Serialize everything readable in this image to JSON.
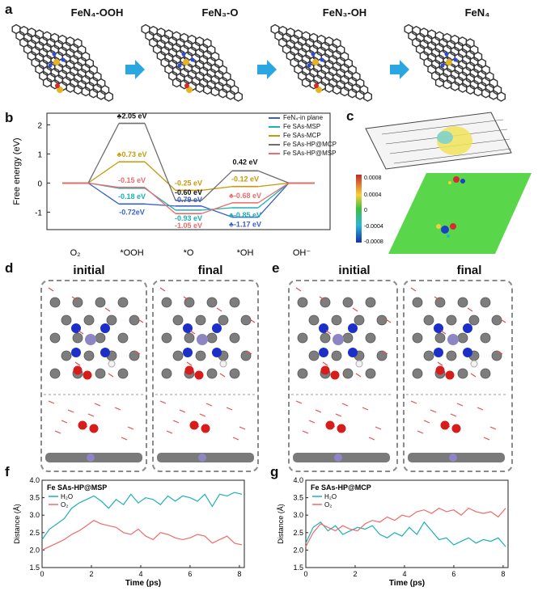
{
  "panel_labels": {
    "a": "a",
    "b": "b",
    "c": "c",
    "d": "d",
    "e": "e",
    "f": "f",
    "g": "g"
  },
  "panel_a": {
    "titles": [
      "FeN₄-OOH",
      "FeN₃-O",
      "FeN₃-OH",
      "FeN₄"
    ],
    "arrow_color": "#2aa6e0"
  },
  "panel_b": {
    "ylabel": "Free energy (eV)",
    "categories": [
      "O₂",
      "*OOH",
      "*O",
      "*OH",
      "OH⁻"
    ],
    "legend": [
      "FeN₄-in plane",
      "Fe SAs-MSP",
      "Fe SAs-MCP",
      "Fe SAs-HP@MCP",
      "Fe SAs-HP@MSP"
    ],
    "value_labels": [
      "♣2.05 eV",
      "♣0.73 eV",
      "-0.15 eV",
      "-0.18 eV",
      "-0.72eV",
      "-0.25 eV",
      "-0.60 eV",
      "-0.79 eV",
      "-0.93 eV",
      "-1.05 eV",
      "0.42 eV",
      "-0.12 eV",
      "♣-0.68 eV",
      "♣-0.85 eV",
      "♣-1.17 eV"
    ]
  },
  "panel_c": {
    "colorbar_ticks": [
      "0.0008",
      "0.0004",
      "0",
      "-0.0004",
      "-0.0008"
    ]
  },
  "panel_d": {
    "initial": "initial",
    "final": "final"
  },
  "panel_e": {
    "initial": "initial",
    "final": "final"
  },
  "panel_f": {
    "title": "Fe SAs-HP@MSP",
    "xlabel": "Time (ps)",
    "ylabel": "Distance (Å)",
    "legend": [
      "H₂O",
      "O₂"
    ]
  },
  "panel_g": {
    "title": "Fe SAs-HP@MCP",
    "xlabel": "Time (ps)",
    "ylabel": "Distance (Å)",
    "legend": [
      "H₂O",
      "O₂"
    ]
  },
  "chart_data": [
    {
      "type": "line",
      "categories": [
        "O₂",
        "*OOH",
        "*O",
        "*OH",
        "OH⁻"
      ],
      "ylabel": "Free energy (eV)",
      "ylim": [
        -1.6,
        2.4
      ],
      "yticks": [
        -1,
        0,
        1,
        2
      ],
      "legend_position": "top-right",
      "series": [
        {
          "name": "FeN₄-in plane",
          "color": "#3a5fc8",
          "values": [
            0,
            -0.72,
            -0.79,
            -1.17,
            0
          ]
        },
        {
          "name": "Fe SAs-MSP",
          "color": "#1bb0b5",
          "values": [
            0,
            -0.18,
            -0.93,
            -0.85,
            0
          ]
        },
        {
          "name": "Fe SAs-MCP",
          "color": "#c49a0a",
          "values": [
            0,
            0.73,
            -0.25,
            -0.12,
            0
          ]
        },
        {
          "name": "Fe SAs-HP@MCP",
          "color": "#6e6e6e",
          "values": [
            0,
            2.05,
            -0.6,
            0.42,
            0
          ]
        },
        {
          "name": "Fe SAs-HP@MSP",
          "color": "#f06a6a",
          "values": [
            0,
            -0.15,
            -1.05,
            -0.68,
            0
          ]
        }
      ]
    },
    {
      "type": "line",
      "title": "Fe SAs-HP@MSP",
      "xlabel": "Time (ps)",
      "ylabel": "Distance (Å)",
      "xlim": [
        0,
        8.2
      ],
      "ylim": [
        1.5,
        4.0
      ],
      "xticks": [
        0,
        2,
        4,
        6,
        8
      ],
      "yticks": [
        1.5,
        2.0,
        2.5,
        3.0,
        3.5,
        4.0
      ],
      "series": [
        {
          "name": "H₂O",
          "color": "#1bb0b5",
          "x": [
            0,
            0.3,
            0.6,
            0.9,
            1.2,
            1.5,
            1.8,
            2.1,
            2.4,
            2.7,
            3.0,
            3.3,
            3.6,
            3.9,
            4.2,
            4.5,
            4.8,
            5.1,
            5.4,
            5.7,
            6.0,
            6.3,
            6.6,
            6.9,
            7.2,
            7.5,
            7.8,
            8.1
          ],
          "y": [
            2.3,
            2.6,
            2.75,
            2.9,
            3.2,
            3.35,
            3.45,
            3.55,
            3.4,
            3.2,
            3.45,
            3.3,
            3.6,
            3.35,
            3.5,
            3.45,
            3.3,
            3.55,
            3.4,
            3.55,
            3.5,
            3.4,
            3.6,
            3.25,
            3.6,
            3.55,
            3.65,
            3.6
          ]
        },
        {
          "name": "O₂",
          "color": "#f06a6a",
          "x": [
            0,
            0.3,
            0.6,
            0.9,
            1.2,
            1.5,
            1.8,
            2.1,
            2.4,
            2.7,
            3.0,
            3.3,
            3.6,
            3.9,
            4.2,
            4.5,
            4.8,
            5.1,
            5.4,
            5.7,
            6.0,
            6.3,
            6.6,
            6.9,
            7.2,
            7.5,
            7.8,
            8.1
          ],
          "y": [
            2.0,
            2.1,
            2.2,
            2.3,
            2.45,
            2.55,
            2.7,
            2.85,
            2.75,
            2.7,
            2.65,
            2.5,
            2.45,
            2.6,
            2.4,
            2.3,
            2.5,
            2.45,
            2.35,
            2.3,
            2.35,
            2.45,
            2.4,
            2.2,
            2.3,
            2.4,
            2.2,
            2.15
          ]
        }
      ]
    },
    {
      "type": "line",
      "title": "Fe SAs-HP@MCP",
      "xlabel": "Time (ps)",
      "ylabel": "Distance (Å)",
      "xlim": [
        0,
        8.2
      ],
      "ylim": [
        1.5,
        4.0
      ],
      "xticks": [
        0,
        2,
        4,
        6,
        8
      ],
      "yticks": [
        1.5,
        2.0,
        2.5,
        3.0,
        3.5,
        4.0
      ],
      "series": [
        {
          "name": "H₂O",
          "color": "#1bb0b5",
          "x": [
            0,
            0.3,
            0.6,
            0.9,
            1.2,
            1.5,
            1.8,
            2.1,
            2.4,
            2.7,
            3.0,
            3.3,
            3.6,
            3.9,
            4.2,
            4.5,
            4.8,
            5.1,
            5.4,
            5.7,
            6.0,
            6.3,
            6.6,
            6.9,
            7.2,
            7.5,
            7.8,
            8.1
          ],
          "y": [
            2.2,
            2.65,
            2.8,
            2.55,
            2.7,
            2.45,
            2.55,
            2.65,
            2.6,
            2.7,
            2.45,
            2.35,
            2.5,
            2.4,
            2.65,
            2.45,
            2.8,
            2.55,
            2.3,
            2.35,
            2.15,
            2.25,
            2.35,
            2.2,
            2.3,
            2.25,
            2.35,
            2.1
          ]
        },
        {
          "name": "O₂",
          "color": "#f06a6a",
          "x": [
            0,
            0.3,
            0.6,
            0.9,
            1.2,
            1.5,
            1.8,
            2.1,
            2.4,
            2.7,
            3.0,
            3.3,
            3.6,
            3.9,
            4.2,
            4.5,
            4.8,
            5.1,
            5.4,
            5.7,
            6.0,
            6.3,
            6.6,
            6.9,
            7.2,
            7.5,
            7.8,
            8.1
          ],
          "y": [
            2.1,
            2.5,
            2.75,
            2.65,
            2.55,
            2.7,
            2.6,
            2.55,
            2.75,
            2.85,
            2.8,
            2.95,
            2.85,
            3.0,
            2.95,
            3.1,
            3.15,
            3.05,
            3.2,
            3.1,
            3.15,
            3.0,
            3.2,
            3.1,
            3.05,
            3.1,
            2.95,
            3.2
          ]
        }
      ]
    }
  ]
}
